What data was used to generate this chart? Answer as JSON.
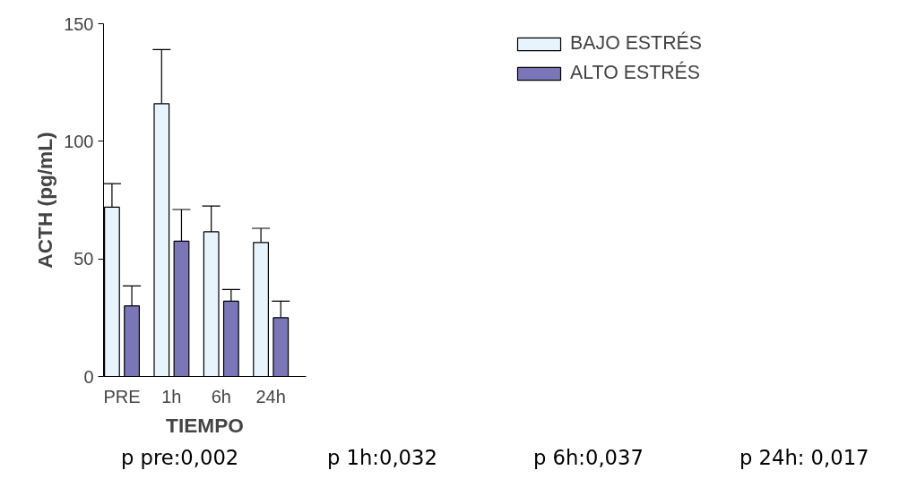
{
  "chart_data": {
    "type": "bar",
    "xlabel": "TIEMPO",
    "ylabel": "ACTH (pg/mL)",
    "categories": [
      "PRE",
      "1h",
      "6h",
      "24h"
    ],
    "series": [
      {
        "name": "BAJO ESTRÉS",
        "color": "#e8f4fc",
        "values": [
          72,
          116,
          61.5,
          57
        ],
        "errors": [
          [
            72,
            82
          ],
          [
            116,
            139
          ],
          [
            61.5,
            72.5
          ],
          [
            57,
            63
          ]
        ]
      },
      {
        "name": "ALTO ESTRÉS",
        "color": "#7b76b8",
        "values": [
          30,
          57.5,
          32,
          25
        ],
        "errors": [
          [
            30,
            38.5
          ],
          [
            57.5,
            71
          ],
          [
            32,
            37
          ],
          [
            25,
            32
          ]
        ]
      }
    ],
    "ylim": [
      0,
      150
    ],
    "yticks": [
      0,
      50,
      100,
      150
    ],
    "grid": false,
    "legend": "top right",
    "annotations": [
      "p pre:0,002",
      "p 1h:0,032",
      "p 6h:0,037",
      "p 24h: 0,017"
    ]
  }
}
